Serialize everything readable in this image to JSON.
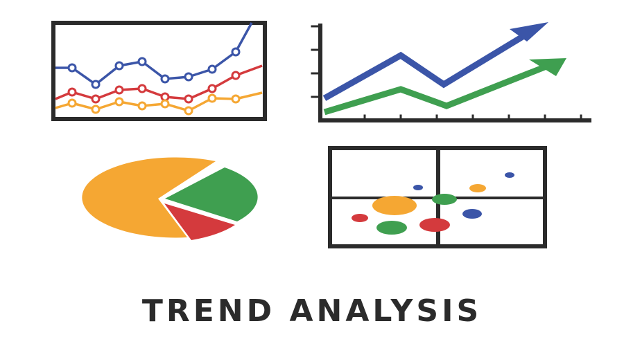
{
  "caption": "TREND ANALYSIS",
  "colors": {
    "ink": "#2b2b2b",
    "blue": "#3b55a8",
    "red": "#d43a3d",
    "orange": "#f5a733",
    "green": "#3f9f50"
  },
  "icons": [
    "line-chart-icon",
    "rising-arrows-chart-icon",
    "pie-chart-icon",
    "scatter-plot-icon"
  ]
}
